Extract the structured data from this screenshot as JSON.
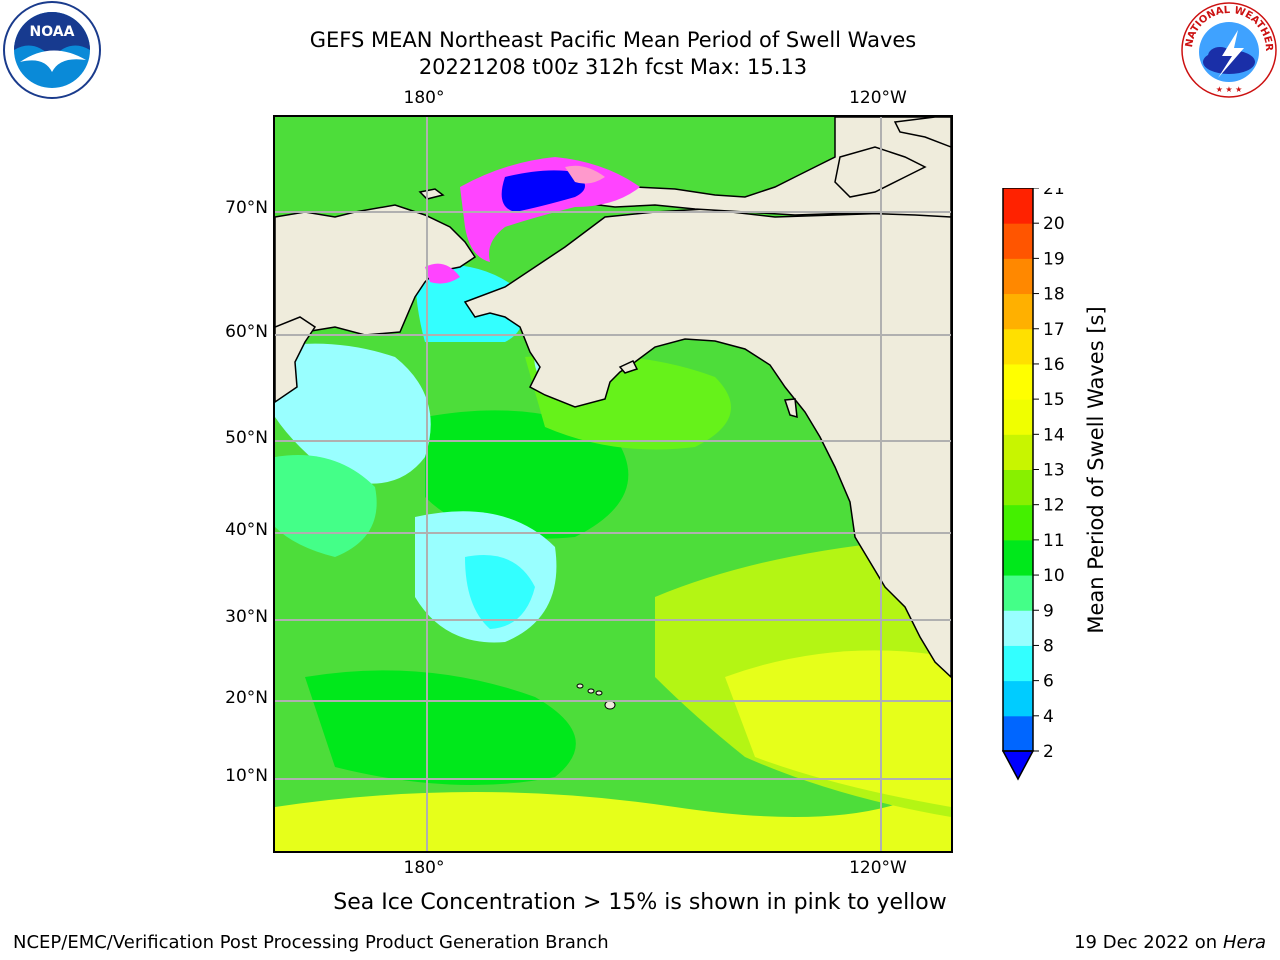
{
  "header": {
    "title_line1": "GEFS MEAN Northeast Pacific Mean Period of Swell Waves",
    "title_line2": "20221208 t00z 312h fcst   Max: 15.13"
  },
  "logos": {
    "left": "noaa-logo",
    "left_text": "NOAA",
    "right": "national-weather-service-logo",
    "right_text": "NATIONAL WEATHER SERVICE"
  },
  "map": {
    "lon_labels_top": [
      "180°",
      "120°W"
    ],
    "lon_labels_bottom": [
      "180°",
      "120°W"
    ],
    "lat_labels": [
      "70°N",
      "60°N",
      "50°N",
      "40°N",
      "30°N",
      "20°N",
      "10°N"
    ],
    "land_color": "#efecdc",
    "ocean_palette": [
      "#33ffff",
      "#99ffff",
      "#44ff88",
      "#00e81b",
      "#66f21a",
      "#b4f514",
      "#e6ff1a",
      "#ffff00"
    ],
    "ice_palette": [
      "#0000ff",
      "#ff44ff",
      "#ff99cc",
      "#ffaa44"
    ]
  },
  "colorbar": {
    "title": "Mean Period of Swell Waves [s]",
    "ticks": [
      "2",
      "4",
      "6",
      "8",
      "9",
      "10",
      "11",
      "12",
      "13",
      "14",
      "15",
      "16",
      "17",
      "18",
      "19",
      "20",
      "21"
    ],
    "colors": [
      "#0066ff",
      "#00ccff",
      "#33ffff",
      "#99ffff",
      "#44ff88",
      "#00e81b",
      "#44f000",
      "#88f000",
      "#c8f500",
      "#f0ff00",
      "#ffff00",
      "#ffe000",
      "#ffb000",
      "#ff8800",
      "#ff5500",
      "#ff2200"
    ],
    "under_color": "#0000ff"
  },
  "footer": {
    "ice_note": "Sea Ice Concentration > 15% is shown in pink to yellow",
    "credit": "NCEP/EMC/Verification Post Processing Product Generation Branch",
    "date": "19 Dec 2022 on",
    "machine": "Hera"
  }
}
